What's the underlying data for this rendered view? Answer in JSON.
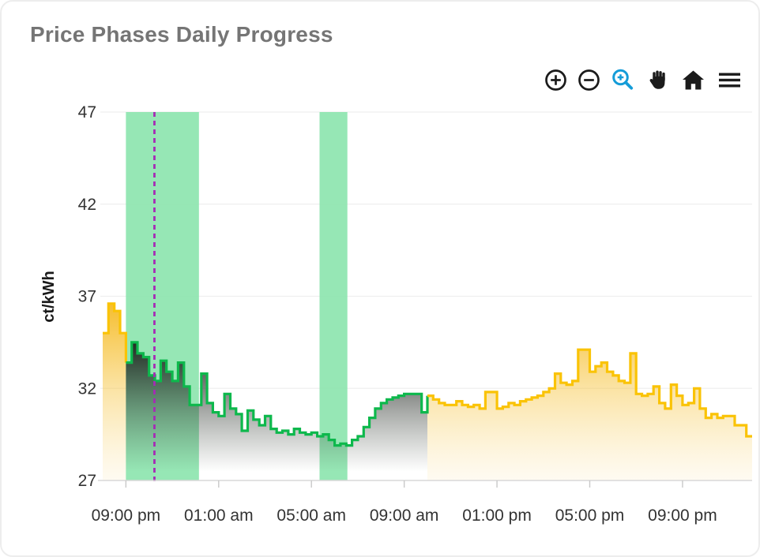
{
  "header": {
    "title": "Price Phases Daily Progress"
  },
  "toolbar": {
    "icons": [
      "zoom-in-icon",
      "zoom-out-icon",
      "box-zoom-icon",
      "pan-hand-icon",
      "home-icon",
      "menu-icon"
    ],
    "icon_color": "#1b1b1b",
    "active_icon_color": "#149CD8"
  },
  "chart_data": {
    "type": "area",
    "title": "Price Phases Daily Progress",
    "xlabel": "",
    "ylabel": "ct/kWh",
    "ylim": [
      27,
      47
    ],
    "yticks": [
      27,
      32,
      37,
      42,
      47
    ],
    "grid": true,
    "legend": "none",
    "x_start_time": "20:00",
    "hours_total": 28,
    "step_hours": 0.25,
    "xticks": [
      {
        "h": 1,
        "label": "09:00 pm"
      },
      {
        "h": 5,
        "label": "01:00 am"
      },
      {
        "h": 9,
        "label": "05:00 am"
      },
      {
        "h": 13,
        "label": "09:00 am"
      },
      {
        "h": 17,
        "label": "01:00 pm"
      },
      {
        "h": 21,
        "label": "05:00 pm"
      },
      {
        "h": 25,
        "label": "09:00 pm"
      }
    ],
    "series": [
      {
        "name": "price-before-green-phase",
        "color": "#FAC306",
        "fill": "yellow",
        "start_index": 0,
        "values": [
          35.0,
          36.6,
          36.2,
          35.0
        ]
      },
      {
        "name": "price-green-phase",
        "color": "#0DB84C",
        "fill": "dark",
        "start_index": 4,
        "values": [
          33.4,
          34.5,
          33.9,
          33.7,
          32.7,
          32.4,
          33.5,
          32.9,
          32.4,
          33.4,
          32.1,
          31.1,
          31.1,
          32.8,
          31.2,
          30.7,
          30.5,
          31.7,
          30.9,
          30.6,
          29.7,
          30.8,
          30.3,
          30.0,
          30.5,
          29.8,
          29.6,
          29.7,
          29.5,
          29.8,
          29.6,
          29.5,
          29.6,
          29.4,
          29.5,
          29.2,
          28.9,
          29.0,
          28.9,
          29.2,
          29.4,
          29.9,
          30.4,
          30.9,
          31.2,
          31.4,
          31.5,
          31.6,
          31.7,
          31.7,
          31.7,
          30.7
        ]
      },
      {
        "name": "price-after-green-phase",
        "color": "#FAC306",
        "fill": "yellow",
        "start_index": 56,
        "values": [
          31.6,
          31.4,
          31.2,
          31.1,
          31.1,
          31.3,
          31.1,
          31.0,
          31.1,
          30.9,
          31.8,
          31.8,
          30.9,
          31.0,
          31.2,
          31.1,
          31.3,
          31.4,
          31.5,
          31.6,
          31.8,
          32.0,
          32.8,
          32.3,
          32.2,
          32.4,
          34.1,
          34.1,
          32.9,
          33.2,
          33.4,
          32.9,
          32.7,
          32.4,
          32.3,
          33.9,
          31.7,
          31.6,
          31.7,
          32.1,
          31.2,
          30.9,
          32.2,
          31.6,
          31.1,
          31.2,
          32.0,
          30.9,
          30.4,
          30.6,
          30.4,
          30.5,
          30.5,
          30.0,
          30.0,
          29.4
        ]
      }
    ],
    "bands": [
      {
        "name": "green-phase-band-1",
        "from_h": 1.0,
        "to_h": 4.15
      },
      {
        "name": "green-phase-band-2",
        "from_h": 9.35,
        "to_h": 10.55
      }
    ],
    "band_color": "#8DE5AF",
    "now_line": {
      "h": 2.23,
      "color": "#A62BB5",
      "style": "dashed"
    },
    "colors": {
      "yellow_line": "#FAC306",
      "green_line": "#0DB84C",
      "dark_fill": "#1C201C",
      "grid": "#EFEFEF",
      "axis": "#D8D8D8",
      "tick_text": "#333333"
    }
  }
}
